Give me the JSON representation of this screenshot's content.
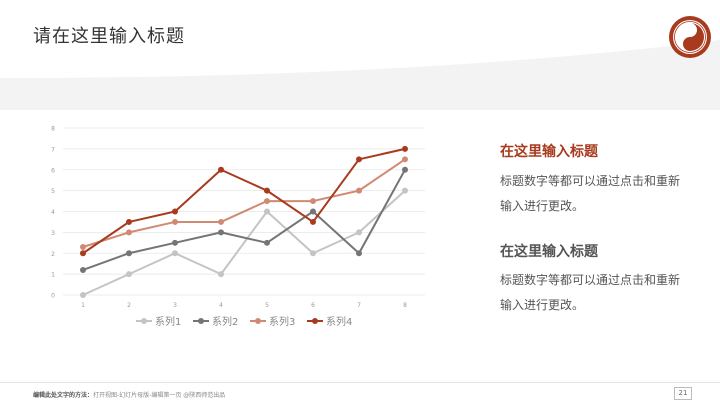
{
  "header": {
    "title": "请在这里输入标题"
  },
  "colors": {
    "accent": "#a83a1e"
  },
  "chart_data": {
    "type": "line",
    "x": [
      1,
      2,
      3,
      4,
      5,
      6,
      7,
      8
    ],
    "ylim": [
      0,
      8
    ],
    "yticks": [
      0,
      1,
      2,
      3,
      4,
      5,
      6,
      7,
      8
    ],
    "grid": true,
    "legend_position": "bottom",
    "series": [
      {
        "name": "系列1",
        "color": "#c4c4c4",
        "values": [
          0,
          1,
          2,
          1,
          4,
          2,
          3,
          5
        ]
      },
      {
        "name": "系列2",
        "color": "#757575",
        "values": [
          1.2,
          2,
          2.5,
          3,
          2.5,
          4,
          2,
          6
        ]
      },
      {
        "name": "系列3",
        "color": "#d08a74",
        "values": [
          2.3,
          3,
          3.5,
          3.5,
          4.5,
          4.5,
          5,
          6.5
        ]
      },
      {
        "name": "系列4",
        "color": "#a83a1e",
        "values": [
          2,
          3.5,
          4,
          6,
          5,
          3.5,
          6.5,
          7
        ]
      }
    ]
  },
  "side": {
    "blocks": [
      {
        "heading": "在这里输入标题",
        "body": "标题数字等都可以通过点击和重新输入进行更改。"
      },
      {
        "heading": "在这里输入标题",
        "body": "标题数字等都可以通过点击和重新输入进行更改。"
      }
    ]
  },
  "footer": {
    "label": "编辑此处文字的方法：",
    "text": "打开视图-幻灯片母版-编辑第一页 @陕西师范出品",
    "page_number": "21"
  }
}
